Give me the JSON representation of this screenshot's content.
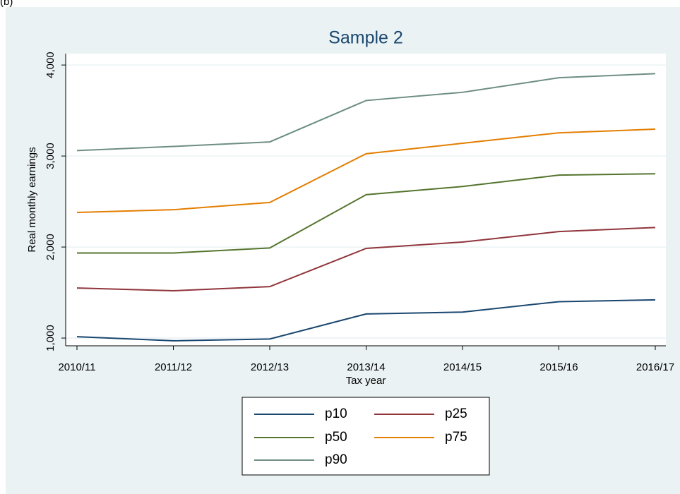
{
  "panel_label": "(b)",
  "chart_data": {
    "type": "line",
    "title": "Sample 2",
    "x_label": "Tax year",
    "y_label": "Real monthly earnings",
    "categories": [
      "2010/11",
      "2011/12",
      "2012/13",
      "2013/14",
      "2014/15",
      "2015/16",
      "2016/17"
    ],
    "series": [
      {
        "name": "p10",
        "color": "#1a476f",
        "values": [
          1015,
          970,
          990,
          1265,
          1285,
          1400,
          1420
        ]
      },
      {
        "name": "p25",
        "color": "#90353b",
        "values": [
          1550,
          1520,
          1565,
          1985,
          2055,
          2170,
          2215
        ]
      },
      {
        "name": "p50",
        "color": "#55752f",
        "values": [
          1935,
          1935,
          1990,
          2575,
          2665,
          2790,
          2805
        ]
      },
      {
        "name": "p75",
        "color": "#e37e00",
        "values": [
          2380,
          2410,
          2490,
          3025,
          3140,
          3255,
          3295
        ]
      },
      {
        "name": "p90",
        "color": "#6e8e84",
        "values": [
          3060,
          3105,
          3155,
          3610,
          3700,
          3860,
          3905
        ]
      }
    ],
    "ylim": [
      915,
      4125
    ],
    "yticks": [
      {
        "value": 1000,
        "label": "1,000"
      },
      {
        "value": 2000,
        "label": "2,000"
      },
      {
        "value": 3000,
        "label": "3,000"
      },
      {
        "value": 4000,
        "label": "4,000"
      }
    ],
    "grid": true
  }
}
